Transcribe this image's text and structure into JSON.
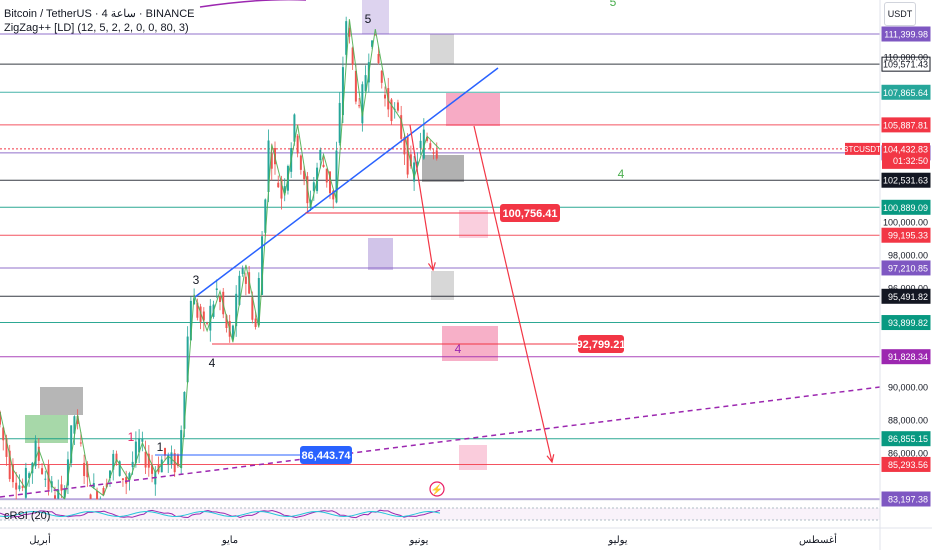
{
  "header": {
    "symbol_line": "Bitcoin / TetherUS · 4 ساعة · BINANCE",
    "indicator_line": "ZigZag++ [LD] (12, 5, 2, 2, 0, 0, 80, 3)",
    "currency": "USDT",
    "rsi_label": "cRSI (20)"
  },
  "chart_data": {
    "type": "line",
    "title": "Bitcoin / TetherUS · 4 ساعة · BINANCE",
    "ylabel": "USDT",
    "ylim": [
      82500,
      113500
    ],
    "x_ticks": [
      "أبريل",
      "مايو",
      "يونيو",
      "يوليو",
      "أغسطس"
    ],
    "y_ticks": [
      "110,000.00",
      "100,000.00",
      "98,000.00",
      "96,000.00",
      "90,000.00",
      "88,000.00",
      "86,000.00"
    ],
    "levels": [
      {
        "label": "111,399.98",
        "value": 111399.98,
        "color": "#7e57c2"
      },
      {
        "label": "109,571.43",
        "value": 109571.43,
        "color": "#131722",
        "badge_text": "#ffffff"
      },
      {
        "label": "107,865.64",
        "value": 107865.64,
        "color": "#26a69a"
      },
      {
        "label": "105,887.81",
        "value": 105887.81,
        "color": "#f23645"
      },
      {
        "label": "104,189.34",
        "value": 104189.34,
        "color": "#7e57c2"
      },
      {
        "label": "102,531.63",
        "value": 102531.63,
        "color": "#131722"
      },
      {
        "label": "100,889.09",
        "value": 100889.09,
        "color": "#089981"
      },
      {
        "label": "99,195.33",
        "value": 99195.33,
        "color": "#f23645"
      },
      {
        "label": "97,210.85",
        "value": 97210.85,
        "color": "#7e57c2"
      },
      {
        "label": "95,491.82",
        "value": 95491.82,
        "color": "#131722"
      },
      {
        "label": "93,899.82",
        "value": 93899.82,
        "color": "#089981"
      },
      {
        "label": "91,828.34",
        "value": 91828.34,
        "color": "#9c27b0"
      },
      {
        "label": "86,855.15",
        "value": 86855.15,
        "color": "#089981"
      },
      {
        "label": "85,293.56",
        "value": 85293.56,
        "color": "#f23645"
      },
      {
        "label": "83,197.38",
        "value": 83197.38,
        "color": "#7e57c2"
      }
    ],
    "current": {
      "ticker": "BTCUSDT",
      "price": "104,432.83",
      "countdown": "01:32:50",
      "value": 104432.83,
      "color": "#f23645"
    },
    "callouts": [
      {
        "label": "100,756.41",
        "value": 100756.41,
        "color": "#f23645"
      },
      {
        "label": "92,799.21",
        "value": 92799.21,
        "color": "#f23645"
      },
      {
        "label": "86,443.74",
        "value": 86443.74,
        "color": "#2962ff"
      }
    ],
    "wave_labels": [
      "1",
      "1",
      "3",
      "4",
      "5",
      "4",
      "4",
      "5"
    ],
    "series": [
      {
        "values": [
          88500,
          85000,
          83800,
          86200,
          84000,
          83200,
          88300,
          84000,
          83400,
          85600,
          84300,
          86600,
          84800,
          85800,
          85100,
          95600,
          93400,
          95800,
          92700,
          97400,
          93600,
          104700,
          101600,
          105900,
          100900,
          104100,
          101300,
          112300,
          106400,
          111700,
          107400,
          106200,
          102700,
          105200,
          104400
        ]
      }
    ],
    "colors": {
      "up": "#26a69a",
      "down": "#ef5350",
      "trend": "#2962ff",
      "projection": "#f23645",
      "dashed": "#9c27b0"
    }
  }
}
